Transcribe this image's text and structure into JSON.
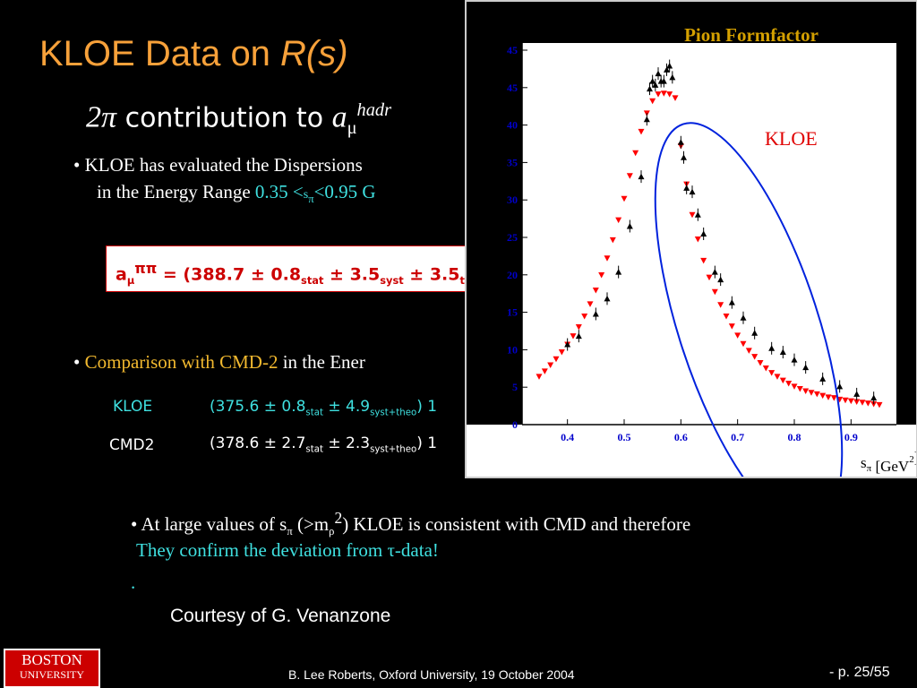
{
  "slide": {
    "title_main": "KLOE Data on ",
    "title_italic": "R(s)",
    "subtitle_2pi": "2π",
    "subtitle_text": " contribution to ",
    "subtitle_a": "a",
    "subtitle_mu": "μ",
    "subtitle_hadr": "hadr",
    "bullet1_line1": "•  KLOE has evaluated the Dispersions",
    "bullet1_line2_prefix": "in the Energy Range ",
    "bullet1_line2_value": "0.35 <",
    "bullet1_line2_s": "s",
    "bullet1_line2_pi": "π",
    "bullet1_line2_end": "<0.95 G",
    "formula": {
      "a": "a",
      "mu": "μ",
      "pipi": "ππ",
      "eq": " = (",
      "val": "388.7",
      "pm1": " ± ",
      "stat": "0.8",
      "stat_lbl": "stat",
      "pm2": " ± ",
      "syst": "3.5",
      "syst_lbl": "syst",
      "pm3": " ± ",
      "theo": "3.5",
      "theo_lbl": "the"
    },
    "bullet2_bullet": "•  ",
    "bullet2_cmp": "Comparison with CMD-2",
    "bullet2_rest": " in the Ener",
    "kloe_label": "KLOE",
    "kloe_value": "(375.6",
    "kloe_pm1": " ± ",
    "kloe_stat": "0.8",
    "kloe_stat_lbl": "stat",
    "kloe_pm2": " ± ",
    "kloe_syst": "4.9",
    "kloe_syst_lbl": "syst+theo",
    "kloe_tail": ") 1",
    "cmd_label": "CMD2",
    "cmd_value": "(378.6",
    "cmd_pm1": " ± ",
    "cmd_stat": "2.7",
    "cmd_stat_lbl": "stat",
    "cmd_pm2": " ± ",
    "cmd_syst": "2.3",
    "cmd_syst_lbl": "syst+theo",
    "cmd_tail": ") 1",
    "bullet3_line1a": "•  At large values of s",
    "bullet3_pi": "π",
    "bullet3_mid": " (>m",
    "bullet3_rho": "ρ",
    "bullet3_sq": "2",
    "bullet3_line1b": ") KLOE is consistent with CMD and therefore",
    "bullet3_line2": "They confirm the  deviation from τ-data!",
    "dot": ".",
    "courtesy": "Courtesy of G. Venanzone",
    "logo_line1": "BOSTON",
    "logo_line2": "UNIVERSITY",
    "footer": "B. Lee Roberts, Oxford University, 19 October 2004",
    "page": "- p. 25/55"
  },
  "colors": {
    "title": "#f7a13a",
    "cyan": "#3fe0e0",
    "gold": "#f2b92f",
    "formula_red": "#cc0000",
    "kloe_points": "#ff0000",
    "cmd_points": "#000000",
    "ellipse": "#0022dd",
    "axis_labels": "#0000cc",
    "chart_title": "#d4a000"
  },
  "chart_data": {
    "type": "scatter",
    "title": "Pion Formfactor",
    "annotation": "KLOE",
    "xlabel_s": "s",
    "xlabel_pi": "π",
    "xlabel_unit": " [GeV",
    "xlabel_sq": "2",
    "xlabel_close": "]",
    "xticks": [
      "0.4",
      "0.5",
      "0.6",
      "0.7",
      "0.8",
      "0.9"
    ],
    "yticks": [
      "0",
      "5",
      "10",
      "15",
      "20",
      "25",
      "30",
      "35",
      "40",
      "45",
      "45"
    ],
    "xlim": [
      0.32,
      0.98
    ],
    "ylim": [
      0,
      50
    ],
    "series": [
      {
        "name": "KLOE",
        "marker": "triangle-down",
        "x": [
          0.35,
          0.36,
          0.37,
          0.38,
          0.39,
          0.4,
          0.41,
          0.42,
          0.43,
          0.44,
          0.45,
          0.46,
          0.47,
          0.48,
          0.49,
          0.5,
          0.51,
          0.52,
          0.53,
          0.54,
          0.55,
          0.56,
          0.57,
          0.58,
          0.59,
          0.6,
          0.61,
          0.62,
          0.63,
          0.64,
          0.65,
          0.66,
          0.67,
          0.68,
          0.69,
          0.7,
          0.71,
          0.72,
          0.73,
          0.74,
          0.75,
          0.76,
          0.77,
          0.78,
          0.79,
          0.8,
          0.81,
          0.82,
          0.83,
          0.84,
          0.85,
          0.86,
          0.87,
          0.88,
          0.89,
          0.9,
          0.91,
          0.92,
          0.93,
          0.94,
          0.95
        ],
        "values": [
          6.3,
          7.0,
          7.8,
          8.6,
          9.5,
          10.5,
          11.6,
          12.8,
          14.2,
          15.8,
          17.6,
          19.6,
          21.8,
          24.2,
          26.8,
          29.6,
          32.6,
          35.6,
          38.4,
          40.8,
          42.4,
          43.3,
          43.4,
          43.3,
          42.8,
          36.5,
          31.5,
          27.5,
          24.3,
          21.5,
          19.3,
          17.4,
          15.7,
          14.2,
          12.9,
          11.7,
          10.6,
          9.7,
          8.9,
          8.1,
          7.4,
          6.8,
          6.3,
          5.8,
          5.4,
          5.0,
          4.7,
          4.4,
          4.2,
          4.0,
          3.8,
          3.6,
          3.5,
          3.3,
          3.2,
          3.1,
          3.0,
          2.9,
          2.8,
          2.7,
          2.6
        ]
      },
      {
        "name": "CMD2",
        "marker": "triangle-up",
        "x": [
          0.4,
          0.42,
          0.45,
          0.47,
          0.49,
          0.51,
          0.53,
          0.54,
          0.545,
          0.55,
          0.555,
          0.56,
          0.565,
          0.57,
          0.575,
          0.58,
          0.585,
          0.6,
          0.605,
          0.61,
          0.62,
          0.63,
          0.64,
          0.66,
          0.67,
          0.69,
          0.71,
          0.73,
          0.76,
          0.78,
          0.8,
          0.82,
          0.85,
          0.88,
          0.91,
          0.94
        ],
        "values": [
          10.5,
          11.6,
          14.5,
          16.5,
          20.0,
          26.0,
          32.5,
          40.0,
          44.0,
          45.0,
          44.5,
          46.0,
          45.0,
          45.0,
          46.5,
          47.0,
          45.5,
          37.0,
          35.0,
          31.0,
          30.5,
          27.5,
          25.0,
          20.0,
          19.0,
          16.0,
          14.0,
          12.0,
          10.0,
          9.5,
          8.5,
          7.5,
          6.0,
          5.0,
          4.0,
          3.5
        ]
      }
    ]
  }
}
